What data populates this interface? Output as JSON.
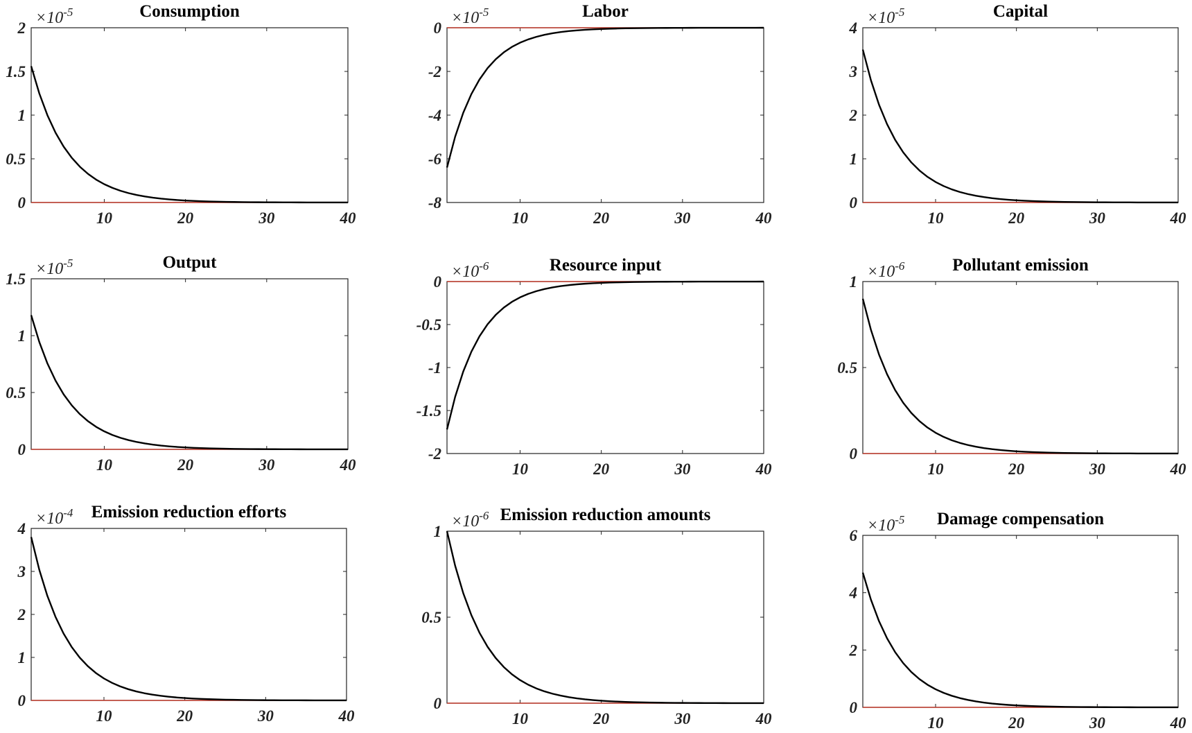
{
  "figure": {
    "background": "#ffffff",
    "axis_color": "#222222",
    "zero_line_color": "#c0392b",
    "response_color": "#000000"
  },
  "chart_data": [
    {
      "type": "line",
      "title": "Consumption",
      "exponent_label": "×10",
      "exponent": "-5",
      "ylim": [
        0,
        2
      ],
      "yticks": [
        0,
        0.5,
        1,
        1.5,
        2
      ],
      "ytick_labels": [
        "0",
        "0.5",
        "1",
        "1.5",
        "2"
      ],
      "xlim": [
        1,
        40
      ],
      "xticks": [
        10,
        20,
        30,
        40
      ],
      "xtick_labels": [
        "10",
        "20",
        "30",
        "40"
      ],
      "start": 1.56,
      "decay": 0.8,
      "zero_line": true
    },
    {
      "type": "line",
      "title": "Labor",
      "exponent_label": "×10",
      "exponent": "-5",
      "ylim": [
        -8,
        0
      ],
      "yticks": [
        -8,
        -6,
        -4,
        -2,
        0
      ],
      "ytick_labels": [
        "-8",
        "-6",
        "-4",
        "-2",
        "0"
      ],
      "xlim": [
        1,
        40
      ],
      "xticks": [
        10,
        20,
        30,
        40
      ],
      "xtick_labels": [
        "10",
        "20",
        "30",
        "40"
      ],
      "start": -6.4,
      "decay": 0.78,
      "zero_line": true
    },
    {
      "type": "line",
      "title": "Capital",
      "exponent_label": "×10",
      "exponent": "-5",
      "ylim": [
        0,
        4
      ],
      "yticks": [
        0,
        1,
        2,
        3,
        4
      ],
      "ytick_labels": [
        "0",
        "1",
        "2",
        "3",
        "4"
      ],
      "xlim": [
        1,
        40
      ],
      "xticks": [
        10,
        20,
        30,
        40
      ],
      "xtick_labels": [
        "10",
        "20",
        "30",
        "40"
      ],
      "start": 3.5,
      "decay": 0.8,
      "zero_line": true
    },
    {
      "type": "line",
      "title": "Output",
      "exponent_label": "×10",
      "exponent": "-5",
      "ylim": [
        0,
        1.5
      ],
      "yticks": [
        0,
        0.5,
        1,
        1.5
      ],
      "ytick_labels": [
        "0",
        "0.5",
        "1",
        "1.5"
      ],
      "xlim": [
        1,
        40
      ],
      "xticks": [
        10,
        20,
        30,
        40
      ],
      "xtick_labels": [
        "10",
        "20",
        "30",
        "40"
      ],
      "start": 1.18,
      "decay": 0.8,
      "zero_line": true
    },
    {
      "type": "line",
      "title": "Resource input",
      "exponent_label": "×10",
      "exponent": "-6",
      "ylim": [
        -2,
        0
      ],
      "yticks": [
        -2,
        -1.5,
        -1,
        -0.5,
        0
      ],
      "ytick_labels": [
        "-2",
        "-1.5",
        "-1",
        "-0.5",
        "0"
      ],
      "xlim": [
        1,
        40
      ],
      "xticks": [
        10,
        20,
        30,
        40
      ],
      "xtick_labels": [
        "10",
        "20",
        "30",
        "40"
      ],
      "start": -1.72,
      "decay": 0.78,
      "zero_line": true
    },
    {
      "type": "line",
      "title": "Pollutant emission",
      "exponent_label": "×10",
      "exponent": "-6",
      "ylim": [
        0,
        1
      ],
      "yticks": [
        0,
        0.5,
        1
      ],
      "ytick_labels": [
        "0",
        "0.5",
        "1"
      ],
      "xlim": [
        1,
        40
      ],
      "xticks": [
        10,
        20,
        30,
        40
      ],
      "xtick_labels": [
        "10",
        "20",
        "30",
        "40"
      ],
      "start": 0.9,
      "decay": 0.8,
      "zero_line": true
    },
    {
      "type": "line",
      "title": "Emission reduction efforts",
      "exponent_label": "×10",
      "exponent": "-4",
      "ylim": [
        0,
        4
      ],
      "yticks": [
        0,
        1,
        2,
        3,
        4
      ],
      "ytick_labels": [
        "0",
        "1",
        "2",
        "3",
        "4"
      ],
      "xlim": [
        1,
        40
      ],
      "xticks": [
        10,
        20,
        30,
        40
      ],
      "xtick_labels": [
        "10",
        "20",
        "30",
        "40"
      ],
      "start": 3.8,
      "decay": 0.8,
      "zero_line": true
    },
    {
      "type": "line",
      "title": "Emission reduction amounts",
      "exponent_label": "×10",
      "exponent": "-6",
      "ylim": [
        0,
        1
      ],
      "yticks": [
        0,
        0.5,
        1
      ],
      "ytick_labels": [
        "0",
        "0.5",
        "1"
      ],
      "xlim": [
        1,
        40
      ],
      "xticks": [
        10,
        20,
        30,
        40
      ],
      "xtick_labels": [
        "10",
        "20",
        "30",
        "40"
      ],
      "start": 1.0,
      "decay": 0.8,
      "zero_line": true
    },
    {
      "type": "line",
      "title": "Damage compensation",
      "exponent_label": "×10",
      "exponent": "-5",
      "ylim": [
        0,
        6
      ],
      "yticks": [
        0,
        2,
        4,
        6
      ],
      "ytick_labels": [
        "0",
        "2",
        "4",
        "6"
      ],
      "xlim": [
        1,
        40
      ],
      "xticks": [
        10,
        20,
        30,
        40
      ],
      "xtick_labels": [
        "10",
        "20",
        "30",
        "40"
      ],
      "start": 4.7,
      "decay": 0.8,
      "zero_line": true
    }
  ]
}
